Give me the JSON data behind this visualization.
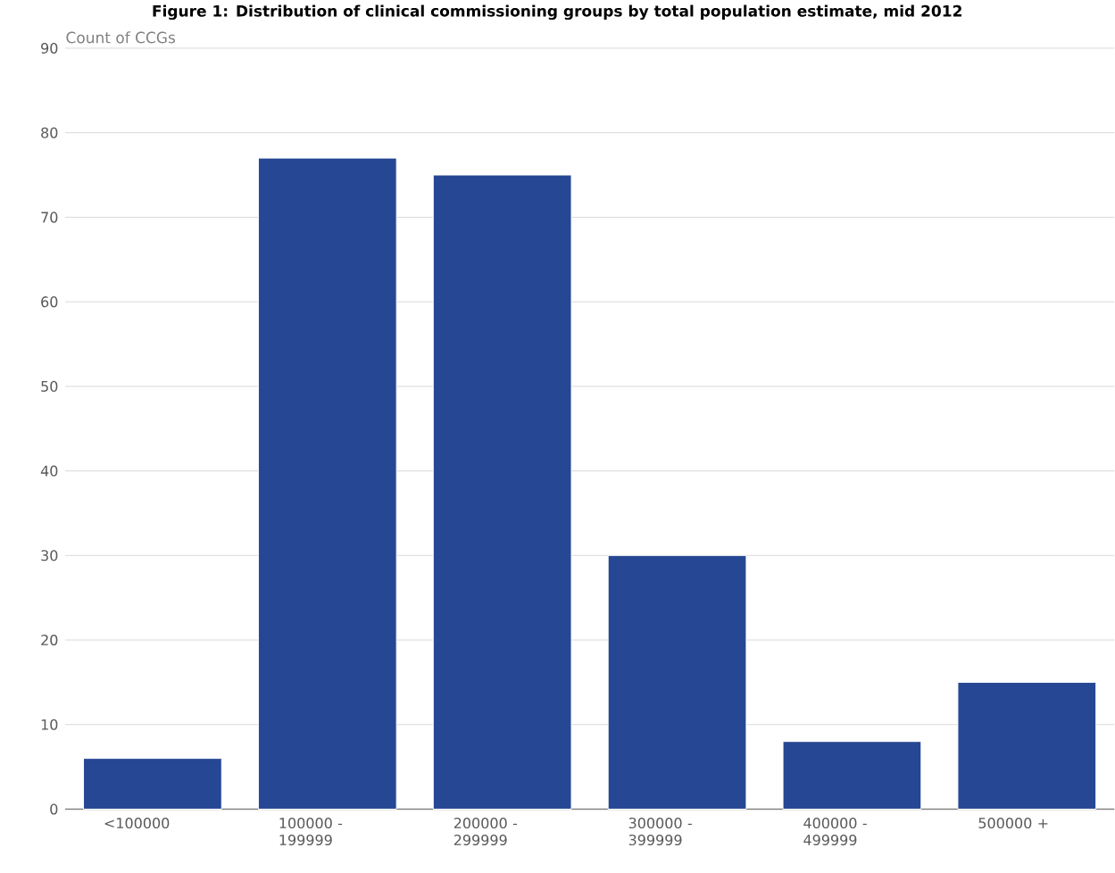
{
  "chart_data": {
    "type": "bar",
    "title": "Figure 1: Distribution of clinical commissioning groups by total population estimate, mid 2012",
    "ylabel": "Count of CCGs",
    "categories": [
      "<100000",
      "100000 - 199999",
      "200000 - 299999",
      "300000 - 399999",
      "400000 - 499999",
      "500000 +"
    ],
    "values": [
      6,
      77,
      75,
      30,
      8,
      15
    ],
    "color": "#264793",
    "ylim": [
      0,
      90
    ],
    "yticks": [
      0,
      10,
      20,
      30,
      40,
      50,
      60,
      70,
      80,
      90
    ],
    "grid": "y"
  }
}
